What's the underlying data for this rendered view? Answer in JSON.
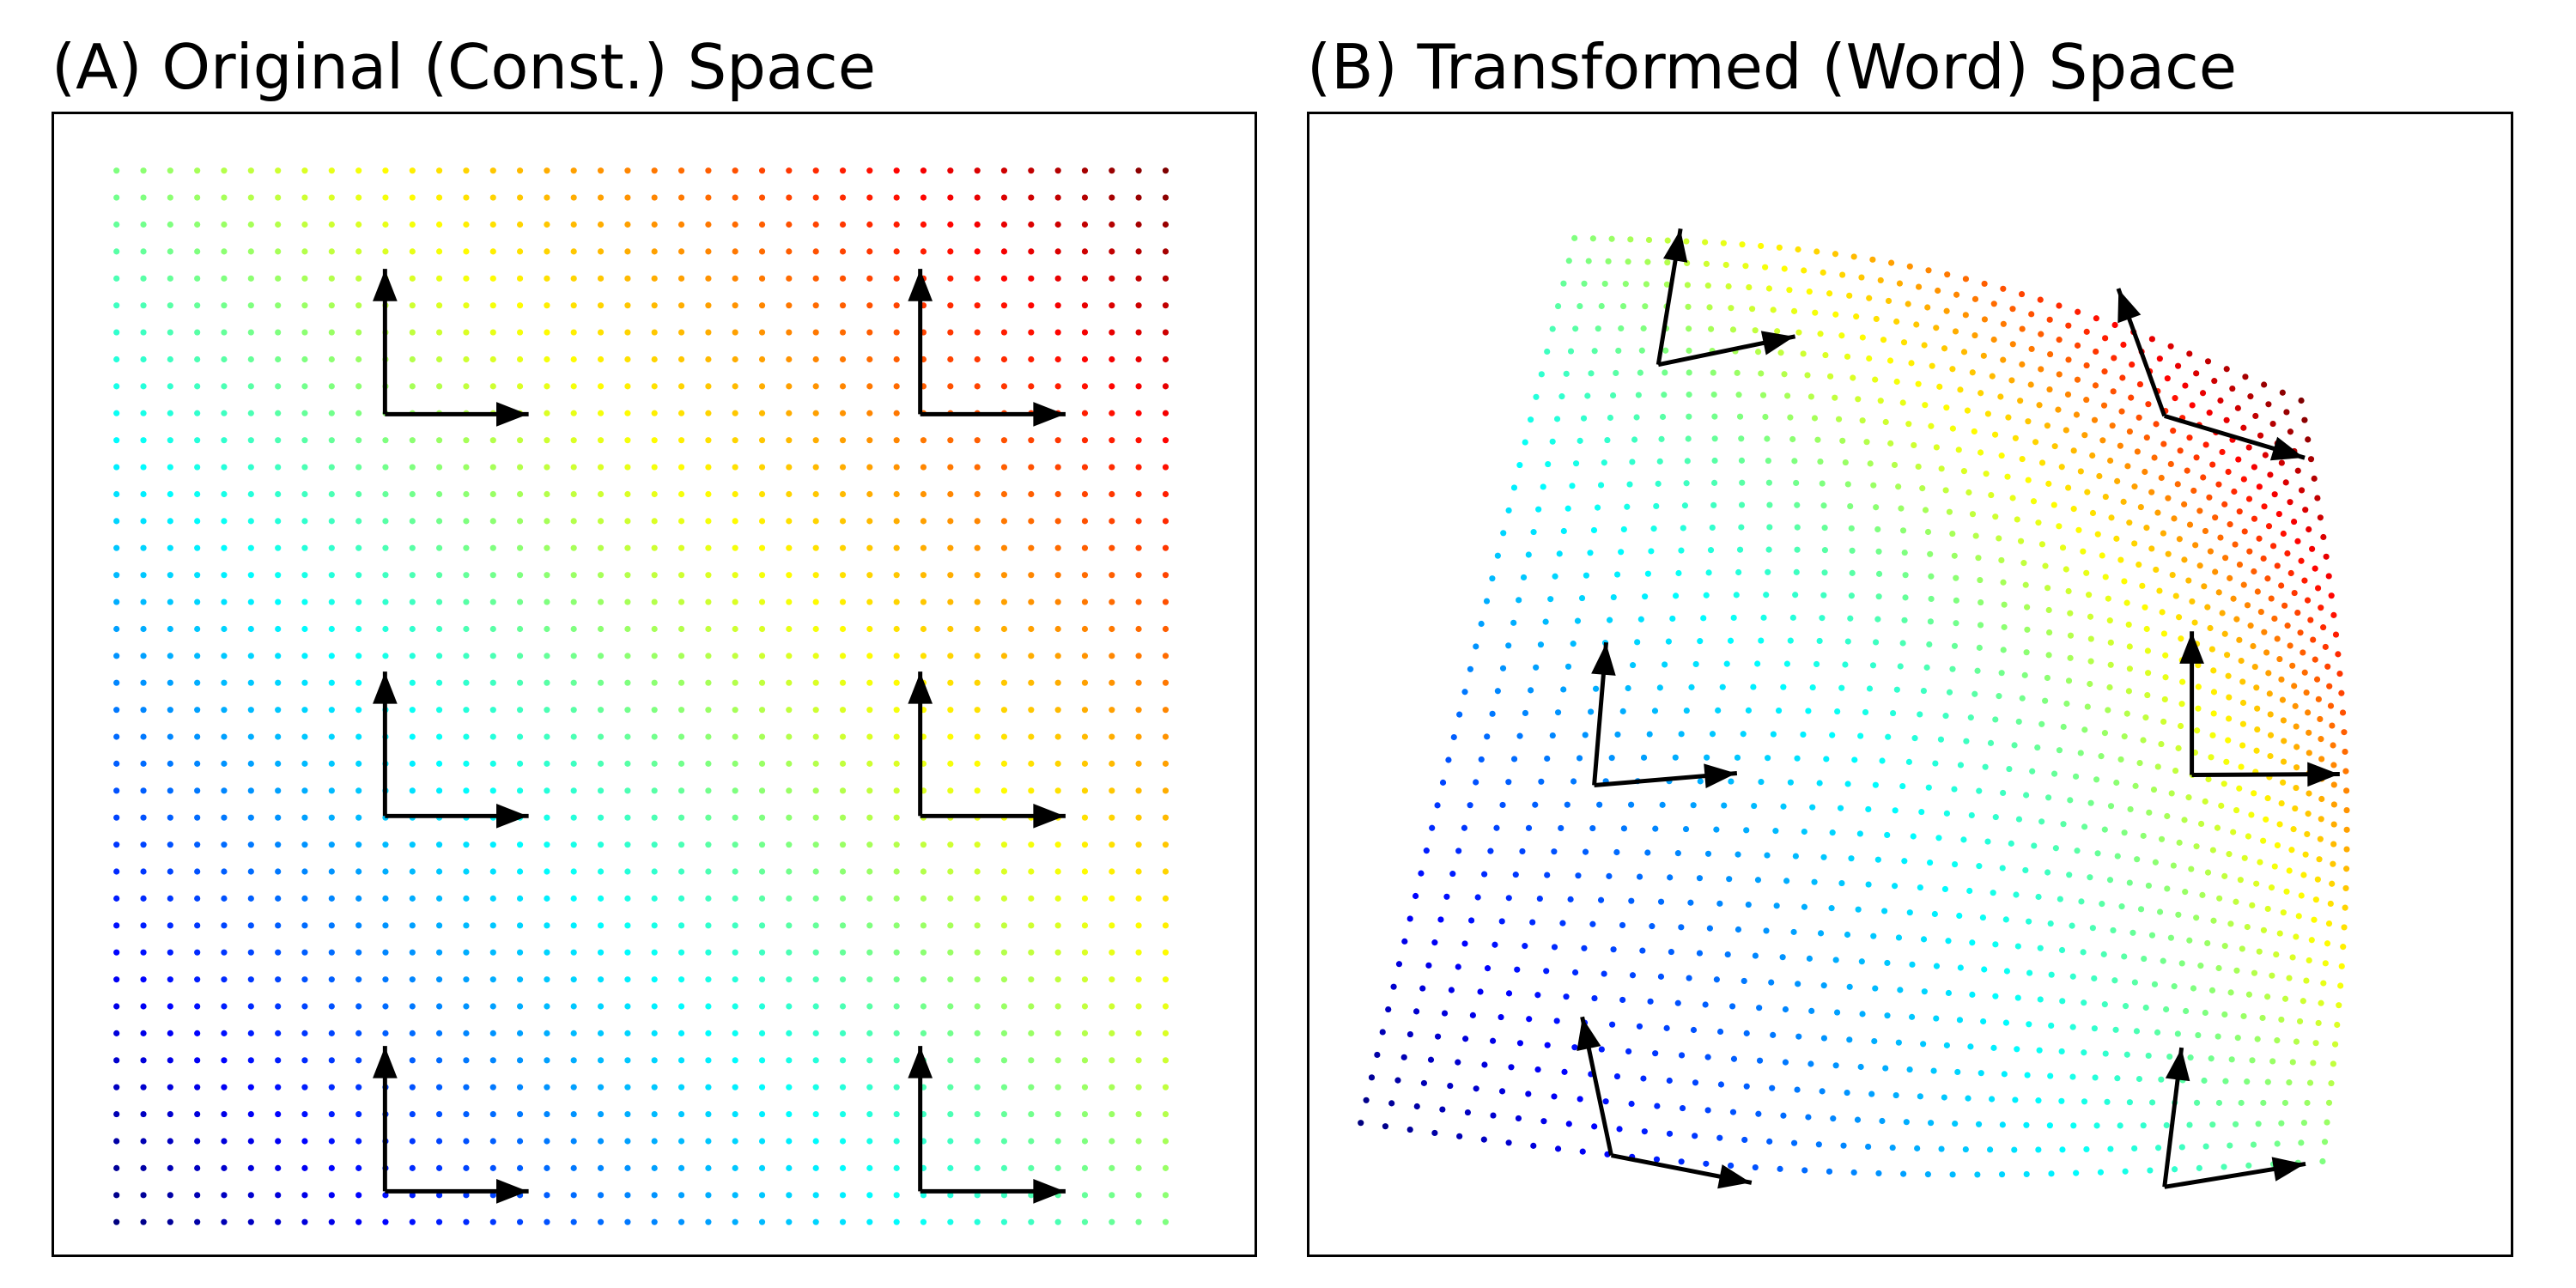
{
  "figure": {
    "panel_a": {
      "title": "(A) Original (Const.) Space"
    },
    "panel_b": {
      "title": "(B) Transformed (Word) Space"
    }
  },
  "grid": {
    "columns": 40,
    "rows": 40,
    "colormap": "jet",
    "colormap_stops": [
      "#00007f",
      "#0000ff",
      "#007fff",
      "#00ffff",
      "#7fff7f",
      "#ffff00",
      "#ff7f00",
      "#ff0000",
      "#7f0000"
    ]
  },
  "arrows": {
    "color": "#000000",
    "count_per_panel": 6
  }
}
